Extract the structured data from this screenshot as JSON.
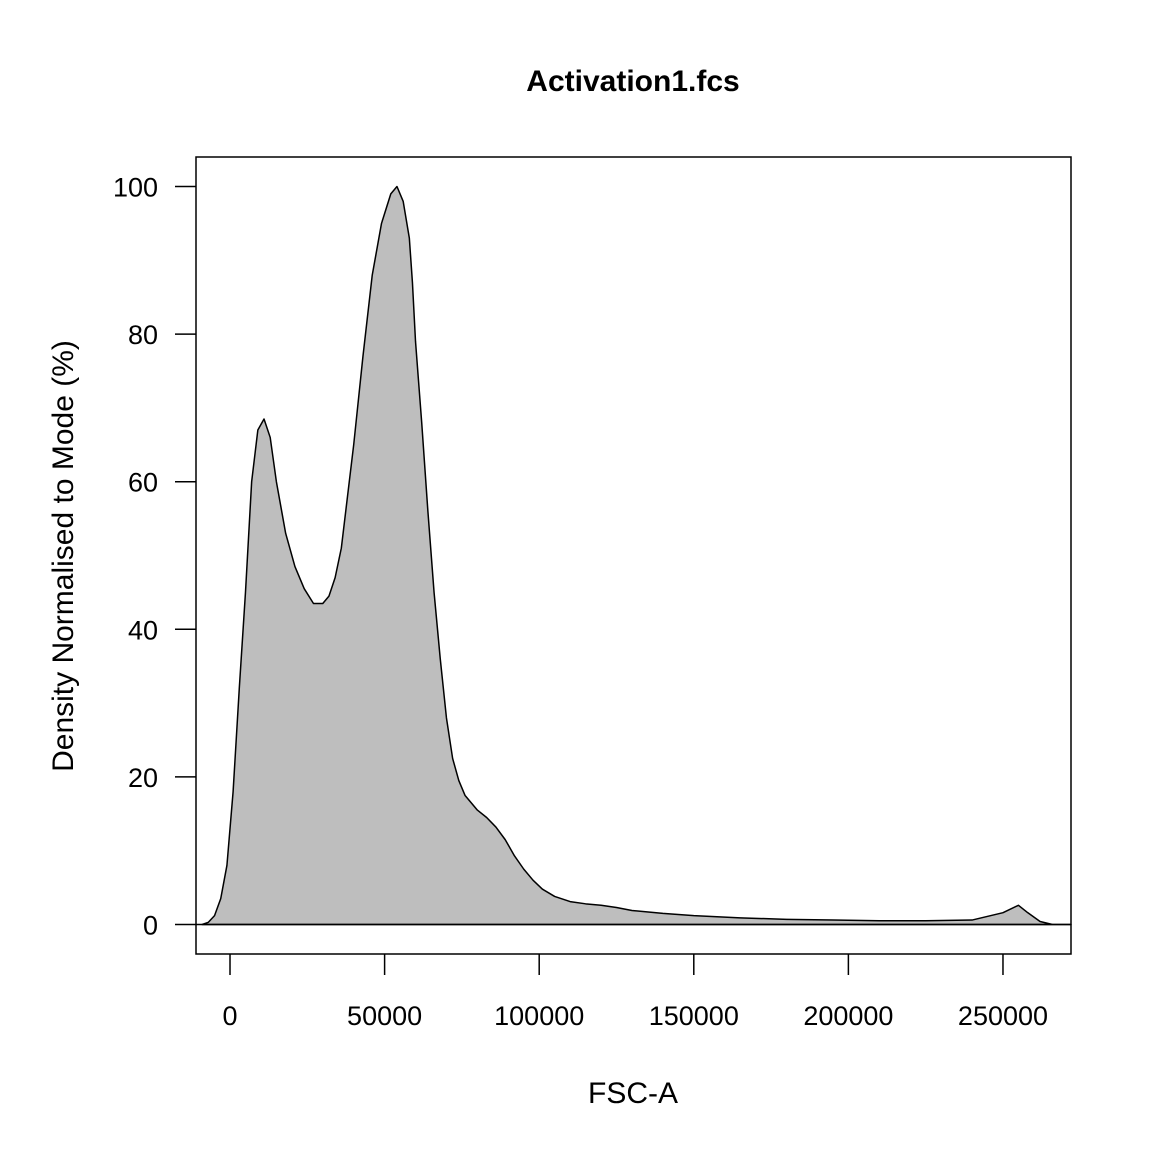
{
  "chart_data": {
    "type": "area",
    "title": "Activation1.fcs",
    "xlabel": "FSC-A",
    "ylabel": "Density Normalised to Mode (%)",
    "xlim": [
      -11000,
      272000
    ],
    "ylim": [
      -4,
      104
    ],
    "xticks": [
      0,
      50000,
      100000,
      150000,
      200000,
      250000
    ],
    "yticks": [
      0,
      20,
      40,
      60,
      80,
      100
    ],
    "grid": false,
    "legend": "none",
    "fill_color": "#bebebe",
    "line_color": "#000000",
    "series": [
      {
        "x": [
          -9000,
          -7000,
          -5000,
          -3000,
          -1000,
          1000,
          3000,
          5000,
          7000,
          9000,
          11000,
          13000,
          15000,
          18000,
          21000,
          24000,
          27000,
          30000,
          32000,
          34000,
          36000,
          38000,
          40000,
          43000,
          46000,
          49000,
          52000,
          54000,
          56000,
          58000,
          59000,
          60000,
          62000,
          64000,
          66000,
          68000,
          70000,
          72000,
          74000,
          76000,
          78000,
          80000,
          83000,
          86000,
          89000,
          92000,
          95000,
          98000,
          101000,
          105000,
          110000,
          115000,
          120000,
          125000,
          130000,
          140000,
          150000,
          165000,
          180000,
          195000,
          210000,
          225000,
          240000,
          250000,
          255000,
          258000,
          262000,
          266000,
          270000,
          272000
        ],
        "y": [
          0,
          0.3,
          1.2,
          3.5,
          8,
          18,
          32,
          45,
          60,
          67,
          68.5,
          66,
          60,
          53,
          48.5,
          45.5,
          43.5,
          43.5,
          44.5,
          47,
          51,
          58,
          65,
          77,
          88,
          95,
          99,
          100,
          98,
          93,
          87,
          79,
          68,
          56,
          45,
          36,
          28,
          22.5,
          19.5,
          17.5,
          16.5,
          15.5,
          14.5,
          13.2,
          11.5,
          9.3,
          7.5,
          6,
          4.8,
          3.8,
          3.1,
          2.8,
          2.6,
          2.3,
          1.9,
          1.5,
          1.2,
          0.9,
          0.7,
          0.6,
          0.5,
          0.5,
          0.6,
          1.6,
          2.6,
          1.6,
          0.4,
          0,
          0,
          0
        ]
      }
    ]
  }
}
